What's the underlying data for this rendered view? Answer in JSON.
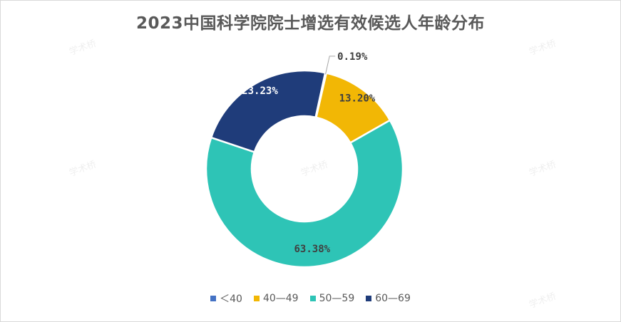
{
  "chart_data": {
    "type": "pie",
    "donut": true,
    "title": "2023中国科学院院士增选有效候选人年龄分布",
    "categories": [
      "＜40",
      "40—49",
      "50—59",
      "60—69"
    ],
    "values": [
      0.19,
      13.2,
      63.38,
      23.23
    ],
    "data_labels": [
      "0.19%",
      "13.20%",
      "63.38%",
      "23.23%"
    ],
    "colors": [
      "#4472c4",
      "#f2b705",
      "#2ec4b6",
      "#1f3c7a"
    ],
    "label_colors": [
      "#404040",
      "#404040",
      "#404040",
      "#ffffff"
    ],
    "legend_position": "bottom"
  },
  "watermark": "学术桥"
}
